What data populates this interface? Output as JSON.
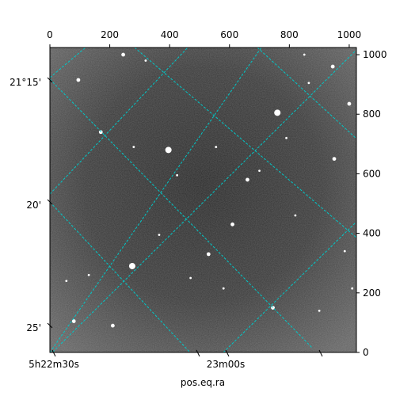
{
  "chart_data": {
    "type": "image",
    "colormap": "gray",
    "grid_color": "#00c8c8",
    "x_pixel_axis": {
      "range": [
        0,
        1024
      ],
      "ticks": [
        0,
        200,
        400,
        600,
        800,
        1000
      ],
      "labels": [
        "0",
        "200",
        "400",
        "600",
        "800",
        "1000"
      ]
    },
    "y_pixel_axis": {
      "range": [
        0,
        1024
      ],
      "ticks": [
        0,
        200,
        400,
        600,
        800,
        1000
      ],
      "labels": [
        "0",
        "200",
        "400",
        "600",
        "800",
        "1000"
      ]
    },
    "ra_axis": {
      "label": "pos.eq.ra",
      "tick_labels": [
        "5h22m30s",
        "23m00s"
      ]
    },
    "dec_axis": {
      "tick_labels": [
        "21°15'",
        "20'",
        "25'"
      ]
    },
    "stars": [
      {
        "x": 396,
        "y": 680,
        "brightness": "bright"
      },
      {
        "x": 760,
        "y": 805,
        "brightness": "bright"
      },
      {
        "x": 275,
        "y": 290,
        "brightness": "bright"
      },
      {
        "x": 210,
        "y": 90,
        "brightness": "medium"
      },
      {
        "x": 80,
        "y": 105,
        "brightness": "medium"
      },
      {
        "x": 95,
        "y": 915,
        "brightness": "medium"
      },
      {
        "x": 170,
        "y": 740,
        "brightness": "medium"
      },
      {
        "x": 245,
        "y": 1000,
        "brightness": "medium"
      },
      {
        "x": 660,
        "y": 580,
        "brightness": "medium"
      },
      {
        "x": 945,
        "y": 960,
        "brightness": "medium"
      },
      {
        "x": 1000,
        "y": 835,
        "brightness": "medium"
      },
      {
        "x": 610,
        "y": 430,
        "brightness": "medium"
      },
      {
        "x": 530,
        "y": 330,
        "brightness": "medium"
      },
      {
        "x": 745,
        "y": 150,
        "brightness": "medium"
      },
      {
        "x": 950,
        "y": 650,
        "brightness": "medium"
      },
      {
        "x": 365,
        "y": 395,
        "brightness": "faint"
      },
      {
        "x": 580,
        "y": 215,
        "brightness": "faint"
      },
      {
        "x": 820,
        "y": 460,
        "brightness": "faint"
      },
      {
        "x": 850,
        "y": 1000,
        "brightness": "faint"
      },
      {
        "x": 1010,
        "y": 215,
        "brightness": "faint"
      },
      {
        "x": 900,
        "y": 140,
        "brightness": "faint"
      },
      {
        "x": 280,
        "y": 690,
        "brightness": "faint"
      },
      {
        "x": 790,
        "y": 720,
        "brightness": "faint"
      },
      {
        "x": 130,
        "y": 260,
        "brightness": "faint"
      },
      {
        "x": 425,
        "y": 595,
        "brightness": "faint"
      },
      {
        "x": 555,
        "y": 690,
        "brightness": "faint"
      },
      {
        "x": 865,
        "y": 905,
        "brightness": "faint"
      },
      {
        "x": 55,
        "y": 240,
        "brightness": "faint"
      },
      {
        "x": 470,
        "y": 250,
        "brightness": "faint"
      },
      {
        "x": 700,
        "y": 610,
        "brightness": "faint"
      },
      {
        "x": 320,
        "y": 980,
        "brightness": "faint"
      },
      {
        "x": 985,
        "y": 340,
        "brightness": "faint"
      }
    ]
  }
}
